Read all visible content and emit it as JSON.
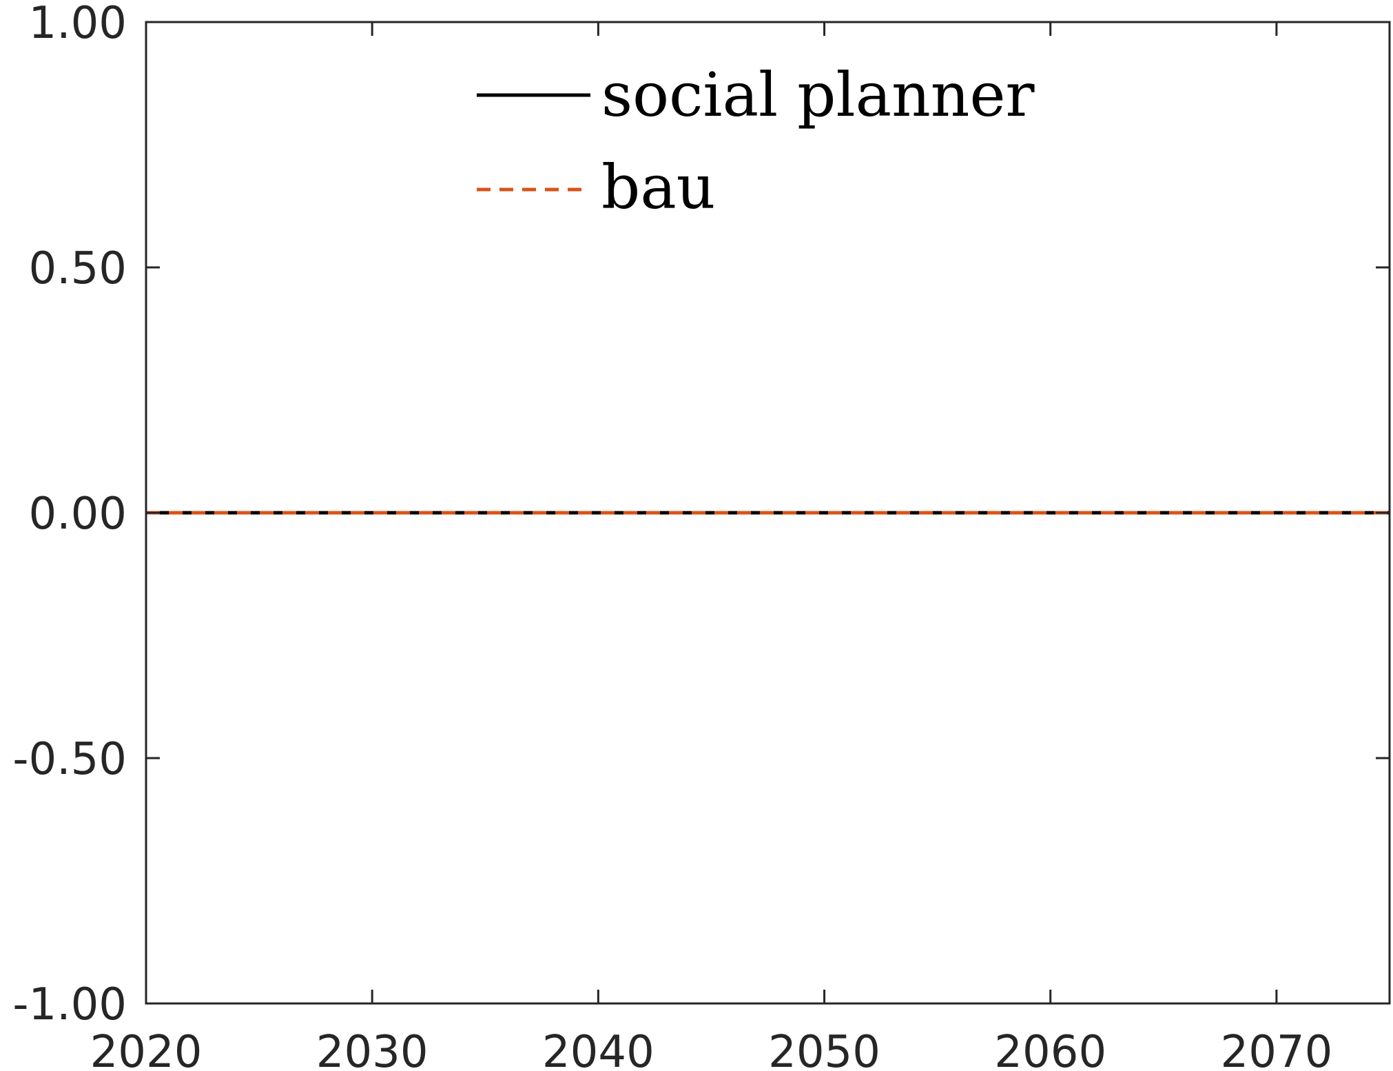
{
  "chart_data": {
    "type": "line",
    "x": [
      2020,
      2075
    ],
    "xlim": [
      2020,
      2075
    ],
    "ylim": [
      -1.0,
      1.0
    ],
    "xticks": [
      2020,
      2030,
      2040,
      2050,
      2060,
      2070
    ],
    "xtick_labels": [
      "2020",
      "2030",
      "2040",
      "2050",
      "2060",
      "2070"
    ],
    "yticks": [
      -1.0,
      -0.5,
      0.0,
      0.5,
      1.0
    ],
    "ytick_labels": [
      "-1.00",
      "-0.50",
      "0.00",
      "0.50",
      "1.00"
    ],
    "grid": false,
    "legend_position": "top-center",
    "series": [
      {
        "name": "social planner",
        "values": [
          0.0,
          0.0
        ],
        "color": "#000000",
        "dash": "solid"
      },
      {
        "name": "bau",
        "values": [
          0.0,
          0.0
        ],
        "color": "#D95319",
        "dash": "dashed"
      }
    ]
  }
}
